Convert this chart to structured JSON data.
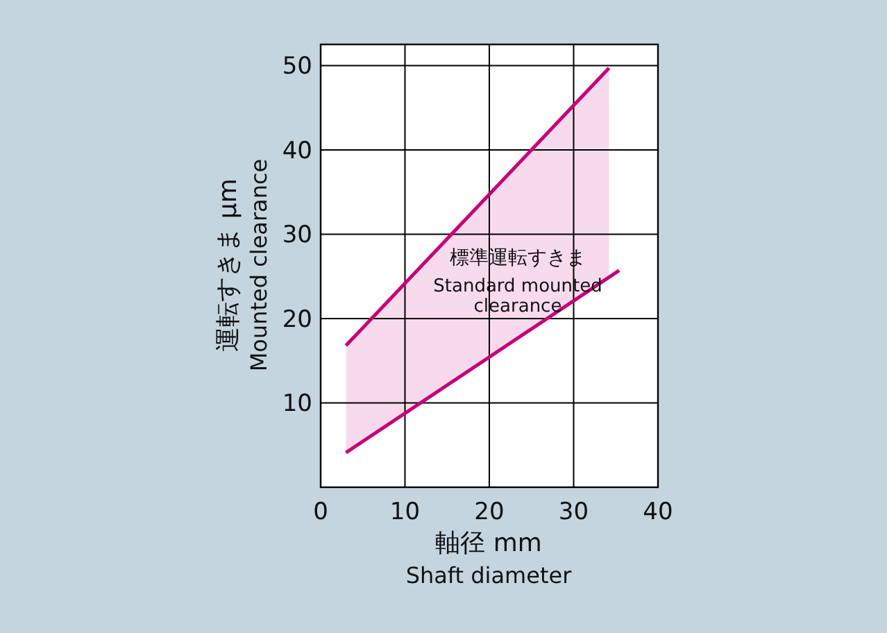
{
  "chart_data": {
    "type": "line",
    "xlabel": "軸径  mm\nShaft diameter",
    "ylabel": "運転すきま  μm\nMounted clearance",
    "xlim": [
      0,
      40
    ],
    "ylim": [
      0,
      52.5
    ],
    "xticks": [
      0,
      10,
      20,
      30,
      40
    ],
    "yticks": [
      10,
      20,
      30,
      40,
      50
    ],
    "grid": true,
    "series": [
      {
        "color": "#c8007a",
        "x": [
          3,
          34.2
        ],
        "values": [
          16.8,
          49.7
        ],
        "lower": [
          4.1,
          24.9
        ],
        "upper": [
          16.8,
          49.7
        ]
      },
      {
        "color": "#c8007a",
        "x": [
          3,
          35.4
        ],
        "values": [
          4.1,
          25.7
        ]
      }
    ],
    "annotations": [
      "標準運転すきま",
      "Standard mounted\nclearance"
    ]
  }
}
